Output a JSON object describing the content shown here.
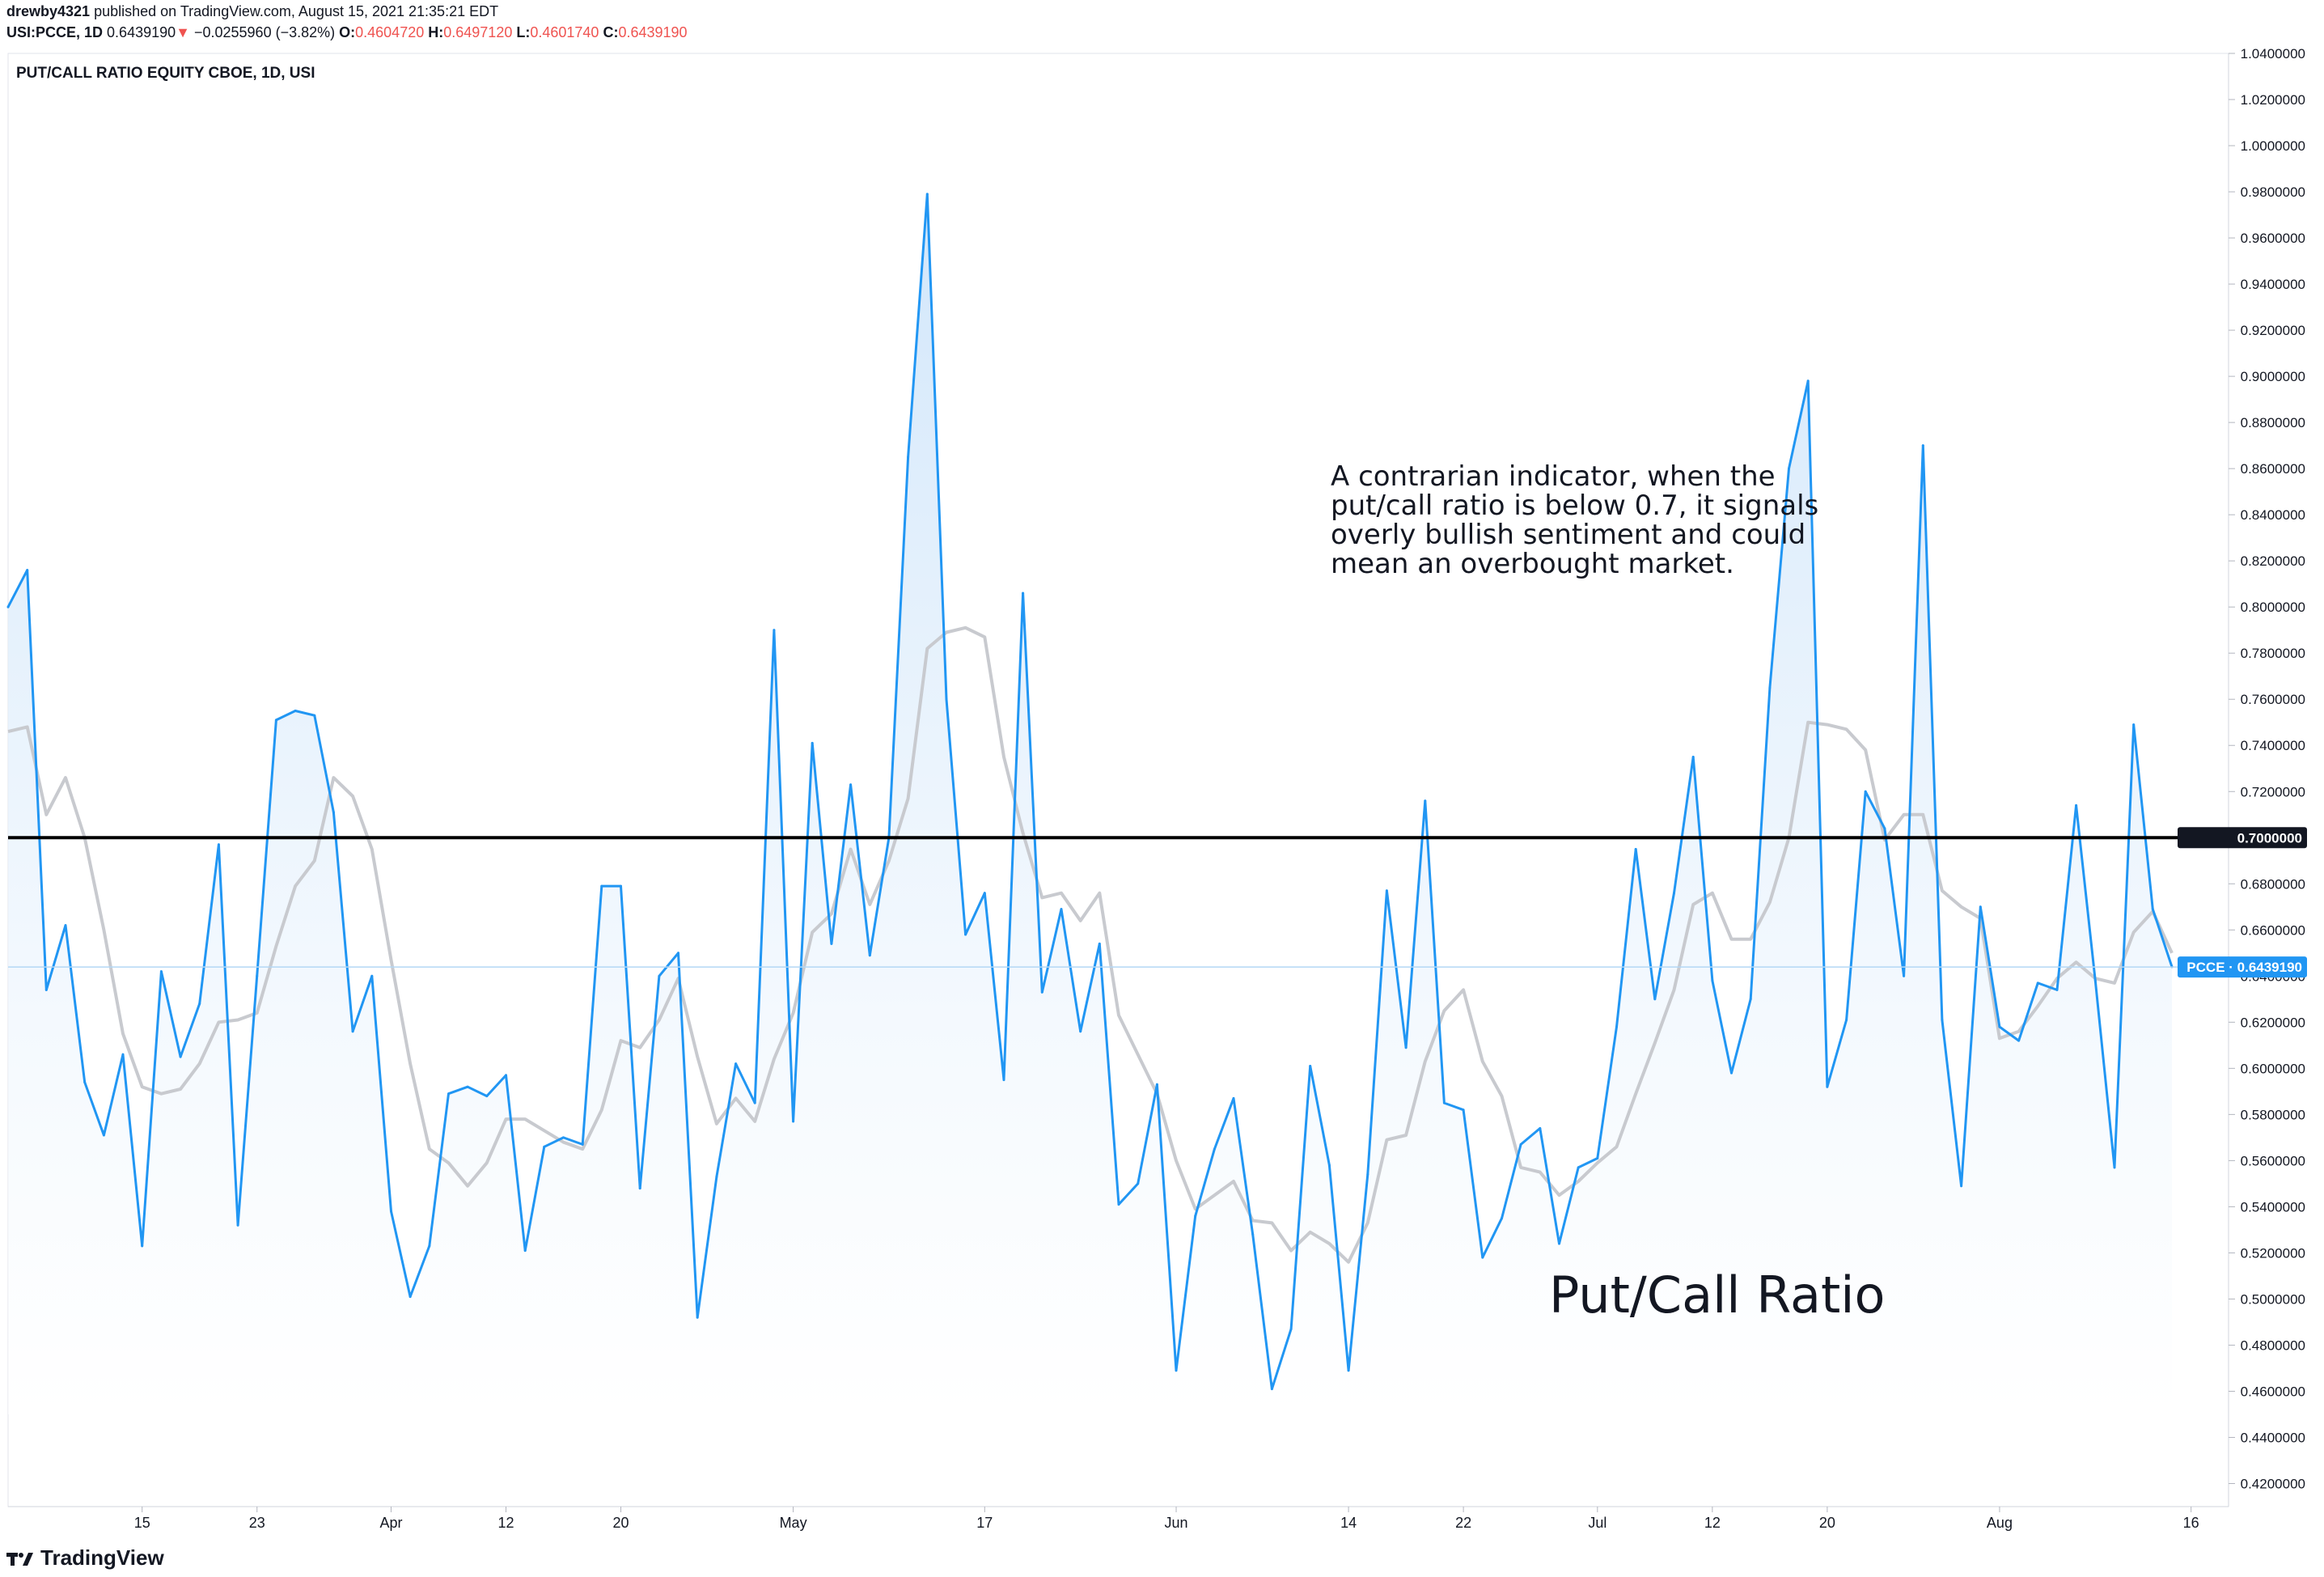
{
  "header": {
    "author": "drewby4321",
    "published": "published on TradingView.com, August 15, 2021 21:35:21 EDT",
    "symbol": "USI:PCCE, 1D",
    "last": "0.6439190",
    "change": "−0.0255960 (−3.82%)",
    "o_label": "O:",
    "o_value": "0.4604720",
    "h_label": "H:",
    "h_value": "0.6497120",
    "l_label": "L:",
    "l_value": "0.4601740",
    "c_label": "C:",
    "c_value": "0.6439190"
  },
  "footer": {
    "brand": "TradingView"
  },
  "colors": {
    "line": "#2196f3",
    "ma": "#c8cacf",
    "fill_top": "#cfe5fa",
    "fill_bottom": "#ffffff",
    "threshold": "#000000",
    "price_label_bg": "#2196f3",
    "threshold_label_bg": "#131722"
  },
  "chart_data": {
    "type": "line",
    "title": "PUT/CALL RATIO EQUITY CBOE, 1D, USI",
    "ylim": [
      0.41,
      1.04
    ],
    "y_ticks": [
      "1.0400000",
      "1.0200000",
      "1.0000000",
      "0.9800000",
      "0.9600000",
      "0.9400000",
      "0.9200000",
      "0.9000000",
      "0.8800000",
      "0.8600000",
      "0.8400000",
      "0.8200000",
      "0.8000000",
      "0.7800000",
      "0.7600000",
      "0.7400000",
      "0.7200000",
      "0.7000000",
      "0.6800000",
      "0.6600000",
      "0.6400000",
      "0.6200000",
      "0.6000000",
      "0.5800000",
      "0.5600000",
      "0.5400000",
      "0.5200000",
      "0.5000000",
      "0.4800000",
      "0.4600000",
      "0.4400000",
      "0.4200000"
    ],
    "x_ticks": [
      {
        "label": "15",
        "i": 7
      },
      {
        "label": "23",
        "i": 13
      },
      {
        "label": "Apr",
        "i": 20
      },
      {
        "label": "12",
        "i": 26
      },
      {
        "label": "20",
        "i": 32
      },
      {
        "label": "May",
        "i": 41
      },
      {
        "label": "17",
        "i": 51
      },
      {
        "label": "Jun",
        "i": 61
      },
      {
        "label": "14",
        "i": 70
      },
      {
        "label": "22",
        "i": 76
      },
      {
        "label": "Jul",
        "i": 83
      },
      {
        "label": "12",
        "i": 89
      },
      {
        "label": "20",
        "i": 95
      },
      {
        "label": "Aug",
        "i": 104
      },
      {
        "label": "16",
        "i": 114
      }
    ],
    "threshold": {
      "value": 0.7,
      "label": "0.7000000"
    },
    "last_value": {
      "value": 0.643919,
      "label": "PCCE · 0.6439190"
    },
    "series": [
      {
        "name": "PCCE",
        "values": [
          0.8,
          0.816,
          0.634,
          0.662,
          0.594,
          0.571,
          0.606,
          0.523,
          0.642,
          0.605,
          0.628,
          0.697,
          0.532,
          0.64,
          0.751,
          0.755,
          0.753,
          0.711,
          0.616,
          0.64,
          0.538,
          0.501,
          0.523,
          0.589,
          0.592,
          0.588,
          0.597,
          0.521,
          0.566,
          0.57,
          0.567,
          0.679,
          0.679,
          0.548,
          0.64,
          0.65,
          0.492,
          0.553,
          0.602,
          0.585,
          0.79,
          0.577,
          0.741,
          0.654,
          0.723,
          0.649,
          0.7,
          0.865,
          0.979,
          0.76,
          0.658,
          0.676,
          0.595,
          0.806,
          0.633,
          0.669,
          0.616,
          0.654,
          0.541,
          0.55,
          0.593,
          0.469,
          0.536,
          0.565,
          0.587,
          0.528,
          0.461,
          0.487,
          0.601,
          0.558,
          0.469,
          0.554,
          0.677,
          0.609,
          0.716,
          0.585,
          0.582,
          0.518,
          0.535,
          0.567,
          0.574,
          0.524,
          0.557,
          0.561,
          0.618,
          0.695,
          0.63,
          0.676,
          0.735,
          0.638,
          0.598,
          0.63,
          0.765,
          0.86,
          0.898,
          0.592,
          0.621,
          0.72,
          0.704,
          0.64,
          0.87,
          0.621,
          0.549,
          0.67,
          0.618,
          0.612,
          0.637,
          0.634,
          0.714,
          0.638,
          0.557,
          0.749,
          0.669,
          0.644
        ]
      },
      {
        "name": "",
        "values": [
          0.746,
          0.748,
          0.71,
          0.726,
          0.7,
          0.66,
          0.615,
          0.592,
          0.589,
          0.591,
          0.602,
          0.62,
          0.621,
          0.624,
          0.653,
          0.679,
          0.69,
          0.726,
          0.718,
          0.695,
          0.647,
          0.602,
          0.565,
          0.559,
          0.549,
          0.559,
          0.578,
          0.578,
          0.573,
          0.568,
          0.565,
          0.582,
          0.612,
          0.609,
          0.621,
          0.639,
          0.605,
          0.576,
          0.587,
          0.577,
          0.604,
          0.624,
          0.659,
          0.667,
          0.695,
          0.671,
          0.69,
          0.717,
          0.782,
          0.789,
          0.791,
          0.787,
          0.735,
          0.702,
          0.674,
          0.676,
          0.664,
          0.676,
          0.623,
          0.606,
          0.589,
          0.56,
          0.539,
          0.545,
          0.551,
          0.534,
          0.533,
          0.521,
          0.529,
          0.524,
          0.516,
          0.533,
          0.569,
          0.571,
          0.603,
          0.625,
          0.634,
          0.603,
          0.588,
          0.557,
          0.555,
          0.545,
          0.551,
          0.559,
          0.566,
          0.589,
          0.611,
          0.634,
          0.671,
          0.676,
          0.656,
          0.656,
          0.672,
          0.7,
          0.75,
          0.749,
          0.747,
          0.738,
          0.699,
          0.71,
          0.71,
          0.677,
          0.67,
          0.665,
          0.613,
          0.616,
          0.627,
          0.639,
          0.646,
          0.639,
          0.637,
          0.659,
          0.668,
          0.65
        ]
      }
    ],
    "annotations": [
      {
        "lines": [
          "A contrarian indicator, when the",
          "put/call ratio is below 0.7, it signals",
          "overly bullish sentiment and could",
          "mean an overbought market."
        ]
      },
      {
        "lines": [
          "Put/Call Ratio"
        ]
      }
    ]
  }
}
